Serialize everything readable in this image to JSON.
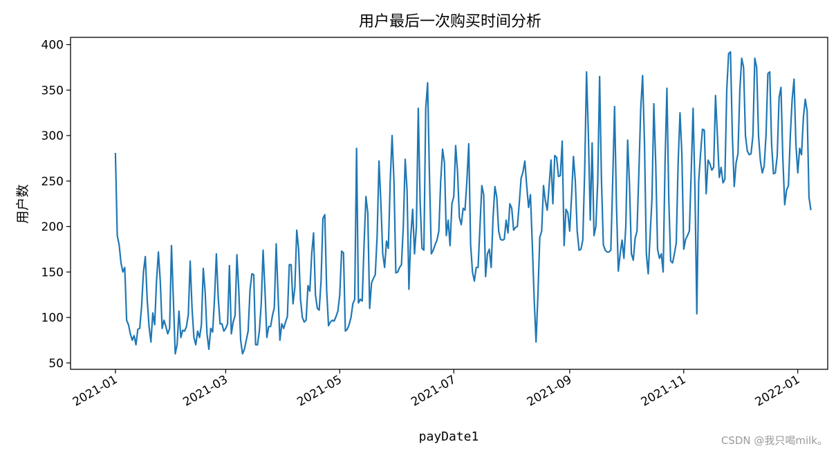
{
  "watermark": "CSDN @我只喝milk。",
  "chart_data": {
    "type": "line",
    "title": "用户最后一次购买时间分析",
    "xlabel": "payDate1",
    "ylabel": "用户数",
    "x_ticks": [
      "2021-01",
      "2021-03",
      "2021-05",
      "2021-07",
      "2021-09",
      "2021-11",
      "2022-01"
    ],
    "y_ticks": [
      50,
      100,
      150,
      200,
      250,
      300,
      350,
      400
    ],
    "xlim": [
      "2020-12-08",
      "2022-01-17"
    ],
    "ylim": [
      43,
      408
    ],
    "color": "#1f77b4",
    "grid": false,
    "series": [
      {
        "x_start": "2021-01-01",
        "x_end": "2021-12-31",
        "x_step": "1 day",
        "values": [
          281,
          190,
          180,
          160,
          150,
          155,
          97,
          92,
          82,
          75,
          80,
          70,
          87,
          88,
          112,
          150,
          167,
          120,
          90,
          73,
          105,
          92,
          140,
          172,
          140,
          88,
          97,
          90,
          82,
          88,
          179,
          120,
          60,
          70,
          107,
          78,
          86,
          85,
          90,
          103,
          162,
          110,
          78,
          70,
          85,
          78,
          92,
          154,
          128,
          82,
          65,
          88,
          84,
          120,
          170,
          122,
          93,
          93,
          85,
          88,
          93,
          157,
          82,
          95,
          102,
          169,
          130,
          75,
          60,
          65,
          75,
          85,
          130,
          148,
          147,
          70,
          70,
          85,
          115,
          174,
          130,
          78,
          90,
          90,
          102,
          111,
          181,
          125,
          75,
          93,
          88,
          95,
          101,
          158,
          158,
          115,
          133,
          196,
          175,
          120,
          100,
          95,
          97,
          135,
          129,
          170,
          193,
          125,
          110,
          108,
          140,
          209,
          213,
          130,
          91,
          95,
          97,
          96,
          101,
          107,
          125,
          173,
          171,
          85,
          87,
          92,
          100,
          115,
          120,
          286,
          116,
          120,
          118,
          180,
          233,
          215,
          110,
          138,
          143,
          147,
          190,
          272,
          226,
          170,
          155,
          184,
          176,
          250,
          300,
          250,
          149,
          150,
          155,
          158,
          200,
          274,
          240,
          131,
          190,
          219,
          170,
          200,
          330,
          227,
          176,
          174,
          330,
          358,
          254,
          170,
          174,
          180,
          185,
          195,
          250,
          285,
          270,
          190,
          207,
          179,
          225,
          233,
          289,
          260,
          210,
          202,
          220,
          218,
          250,
          291,
          180,
          150,
          140,
          155,
          155,
          200,
          245,
          235,
          145,
          170,
          175,
          155,
          210,
          244,
          232,
          195,
          186,
          185,
          186,
          207,
          193,
          225,
          220,
          196,
          199,
          200,
          225,
          253,
          260,
          272,
          245,
          221,
          235,
          180,
          120,
          73,
          125,
          188,
          195,
          245,
          228,
          218,
          245,
          273,
          225,
          278,
          276,
          255,
          256,
          294,
          179,
          219,
          215,
          195,
          233,
          277,
          250,
          195,
          174,
          175,
          185,
          260,
          370,
          300,
          207,
          292,
          190,
          200,
          250,
          365,
          250,
          180,
          174,
          172,
          172,
          174,
          250,
          332,
          225,
          151,
          170,
          185,
          165,
          200,
          295,
          245,
          170,
          163,
          187,
          195,
          260,
          330,
          366,
          292,
          170,
          148,
          190,
          230,
          335,
          270,
          175,
          165,
          170,
          150,
          270,
          352,
          230,
          162,
          160,
          170,
          182,
          270,
          325,
          280,
          175,
          186,
          190,
          195,
          260,
          330,
          240,
          104,
          250,
          280,
          307,
          306,
          236,
          273,
          269,
          262,
          265,
          344,
          300,
          254,
          265,
          248,
          252,
          350,
          390,
          392,
          300,
          244,
          270,
          280,
          350,
          385,
          375,
          300,
          283,
          279,
          280,
          300,
          385,
          375,
          300,
          272,
          259,
          266,
          300,
          368,
          370,
          290,
          258,
          259,
          278,
          342,
          353,
          275,
          224,
          240,
          245,
          300,
          340,
          362,
          290,
          259,
          286,
          279,
          320,
          340,
          327,
          232,
          218
        ]
      }
    ]
  }
}
